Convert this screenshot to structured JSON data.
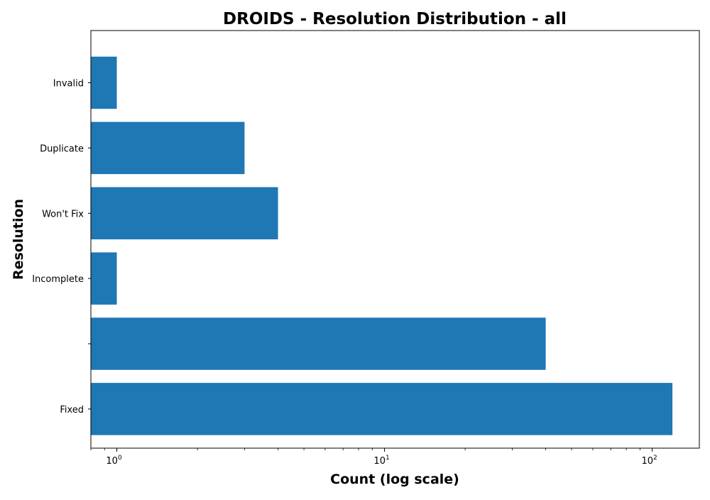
{
  "chart_data": {
    "type": "bar",
    "orientation": "horizontal",
    "title": "DROIDS - Resolution Distribution - all",
    "xlabel": "Count (log scale)",
    "ylabel": "Resolution",
    "x_scale": "log",
    "xlim": [
      0.8,
      150
    ],
    "x_ticks": [
      {
        "base": "10",
        "exp": "0",
        "value": 1
      },
      {
        "base": "10",
        "exp": "1",
        "value": 10
      },
      {
        "base": "10",
        "exp": "2",
        "value": 100
      }
    ],
    "categories": [
      "Invalid",
      "Duplicate",
      "Won't Fix",
      "Incomplete",
      "",
      "Fixed"
    ],
    "values": [
      1,
      3,
      4,
      1,
      40,
      119
    ],
    "colors": {
      "bar": "#1f77b4"
    },
    "grid": false,
    "legend": "none"
  }
}
